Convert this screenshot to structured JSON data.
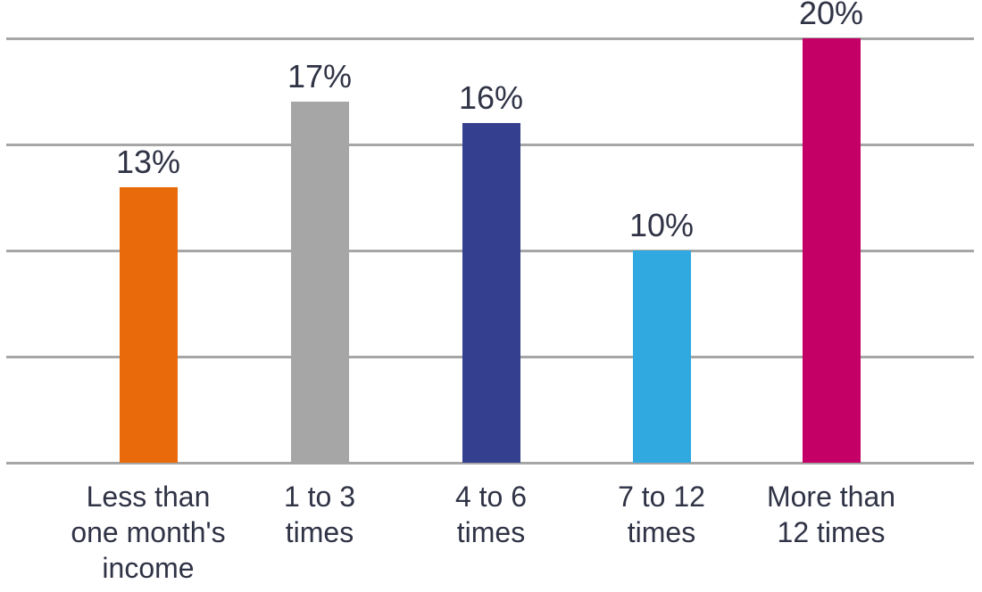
{
  "chart_data": {
    "type": "bar",
    "title": "",
    "xlabel": "",
    "ylabel": "",
    "categories": [
      "Less than one month's income",
      "1 to 3 times",
      "4 to 6 times",
      "7 to 12 times",
      "More than 12 times"
    ],
    "category_lines": [
      [
        "Less than",
        "one month's",
        "income"
      ],
      [
        "1 to 3",
        "times"
      ],
      [
        "4 to 6",
        "times"
      ],
      [
        "7 to 12",
        "times"
      ],
      [
        "More than",
        "12 times"
      ]
    ],
    "values": [
      13,
      17,
      16,
      10,
      20
    ],
    "value_labels": [
      "13%",
      "17%",
      "16%",
      "10%",
      "20%"
    ],
    "bar_colors": [
      "#e86a0a",
      "#a6a6a6",
      "#34408f",
      "#2fa9e0",
      "#c40066"
    ],
    "ylim": [
      0,
      20
    ],
    "gridline_step": 5,
    "grid": true,
    "grid_color": "#a6a6a6",
    "label_color": "#2f3345",
    "legend_position": "none",
    "y_axis_tick_labels_visible": false
  }
}
